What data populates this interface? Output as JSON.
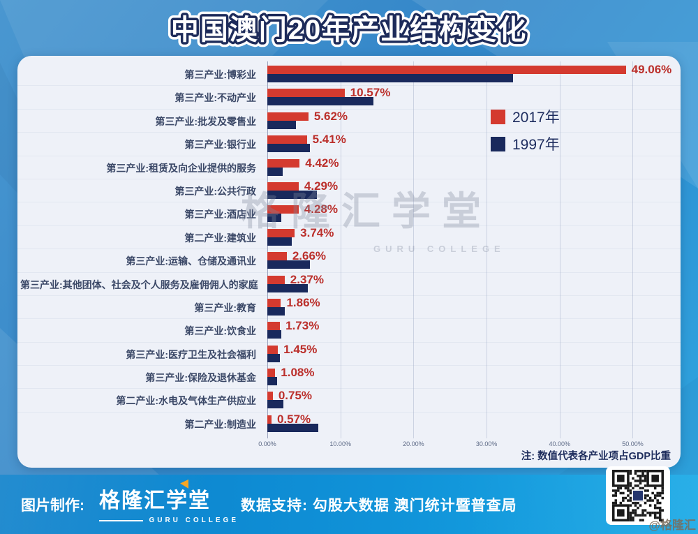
{
  "title": "中国澳门20年产业结构变化",
  "colors": {
    "red_2017": "#d43a2f",
    "navy_1997": "#19295c",
    "value_label": "#bb2f2b",
    "background_blue": "#3487c9",
    "footer_blue": "#1092d8",
    "panel_bg": "#eef1f8"
  },
  "chart_data": {
    "type": "bar",
    "orientation": "horizontal",
    "title": "中国澳门20年产业结构变化",
    "xlabel": "",
    "ylabel": "",
    "xlim": [
      0,
      55.4
    ],
    "grid": true,
    "legend_position": "upper right",
    "note": "注: 数值代表各产业项占GDP比重",
    "x_ticks": [
      "0.00%",
      "10.00%",
      "20.00%",
      "30.00%",
      "40.00%",
      "50.00%"
    ],
    "categories": [
      "第三产业:博彩业",
      "第三产业:不动产业",
      "第三产业:批发及零售业",
      "第三产业:银行业",
      "第三产业:租赁及向企业提供的服务",
      "第三产业:公共行政",
      "第三产业:酒店业",
      "第二产业:建筑业",
      "第三产业:运输、仓储及通讯业",
      "第三产业:其他团体、社会及个人服务及雇佣佣人的家庭",
      "第三产业:教育",
      "第三产业:饮食业",
      "第三产业:医疗卫生及社会福利",
      "第三产业:保险及退休基金",
      "第二产业:水电及气体生产供应业",
      "第二产业:制造业"
    ],
    "series": [
      {
        "name": "2017年",
        "color": "#d43a2f",
        "values": [
          49.06,
          10.57,
          5.62,
          5.41,
          4.42,
          4.29,
          4.28,
          3.74,
          2.66,
          2.37,
          1.86,
          1.73,
          1.45,
          1.08,
          0.75,
          0.57
        ],
        "data_labels": [
          "49.06%",
          "10.57%",
          "5.62%",
          "5.41%",
          "4.42%",
          "4.29%",
          "4.28%",
          "3.74%",
          "2.66%",
          "2.37%",
          "1.86%",
          "1.73%",
          "1.45%",
          "1.08%",
          "0.75%",
          "0.57%"
        ]
      },
      {
        "name": "1997年",
        "color": "#19295c",
        "values": [
          33.6,
          14.5,
          3.9,
          5.8,
          2.1,
          6.8,
          1.9,
          3.3,
          5.8,
          5.5,
          2.4,
          1.9,
          1.7,
          1.3,
          2.2,
          7.0
        ],
        "data_labels": []
      }
    ]
  },
  "watermark": {
    "line1": "格隆汇学堂",
    "line2": "GURU COLLEGE"
  },
  "footer": {
    "made_by_label": "图片制作:",
    "logo_text": "格隆汇学堂",
    "logo_subtext": "GURU COLLEGE",
    "data_support": "数据支持: 勾股大数据  澳门统计暨普查局",
    "handle": "@格隆汇"
  }
}
